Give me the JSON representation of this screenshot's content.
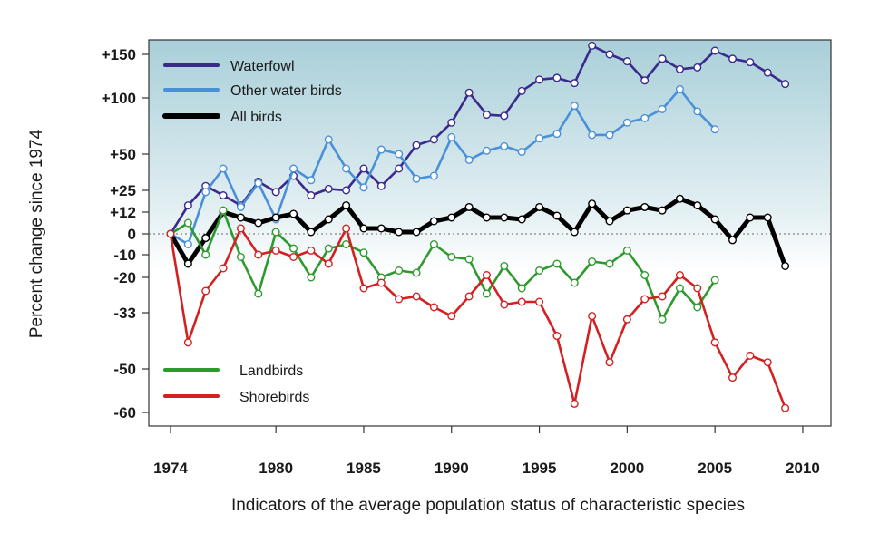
{
  "chart_data": {
    "type": "line",
    "title": "",
    "xlabel": "Indicators of the average population status of characteristic species",
    "ylabel": "Percent change since 1974",
    "xlim": [
      1974,
      2010
    ],
    "x_ticks": [
      1974,
      1980,
      1985,
      1990,
      1995,
      2000,
      2005,
      2010
    ],
    "y_ticks": [
      {
        "value": 150,
        "label": "+150"
      },
      {
        "value": 100,
        "label": "+100"
      },
      {
        "value": 50,
        "label": "+50"
      },
      {
        "value": 25,
        "label": "+25"
      },
      {
        "value": 12,
        "label": "+12"
      },
      {
        "value": 0,
        "label": "0"
      },
      {
        "value": -10,
        "label": "-10"
      },
      {
        "value": -20,
        "label": "-20"
      },
      {
        "value": -33,
        "label": "-33"
      },
      {
        "value": -50,
        "label": "-50"
      },
      {
        "value": -60,
        "label": "-60"
      }
    ],
    "zero_line": "dotted",
    "series": [
      {
        "name": "Waterfowl",
        "color": "#3a2a8c",
        "x": [
          1974,
          1975,
          1976,
          1977,
          1978,
          1979,
          1980,
          1981,
          1982,
          1983,
          1984,
          1985,
          1986,
          1987,
          1988,
          1989,
          1990,
          1991,
          1992,
          1993,
          1994,
          1995,
          1996,
          1997,
          1998,
          1999,
          2000,
          2001,
          2002,
          2003,
          2004,
          2005,
          2006,
          2007,
          2008,
          2009
        ],
        "y": [
          0,
          16,
          28,
          22,
          16,
          31,
          24,
          35,
          22,
          26,
          25,
          40,
          28,
          40,
          58,
          63,
          78,
          106,
          85,
          84,
          108,
          121,
          123,
          117,
          162,
          150,
          142,
          120,
          145,
          133,
          135,
          155,
          145,
          141,
          129,
          116
        ]
      },
      {
        "name": "Other water birds",
        "color": "#4a90d9",
        "x": [
          1974,
          1975,
          1976,
          1977,
          1978,
          1979,
          1980,
          1981,
          1982,
          1983,
          1984,
          1985,
          1986,
          1987,
          1988,
          1989,
          1990,
          1991,
          1992,
          1993,
          1994,
          1995,
          1996,
          1997,
          1998,
          1999,
          2000,
          2001,
          2002,
          2003,
          2004,
          2005
        ],
        "y": [
          0,
          -5,
          24,
          40,
          15,
          30,
          8,
          40,
          32,
          63,
          40,
          27,
          54,
          50,
          33,
          35,
          65,
          46,
          53,
          57,
          52,
          64,
          68,
          93,
          67,
          67,
          78,
          82,
          90,
          110,
          88,
          72
        ]
      },
      {
        "name": "All birds",
        "color": "#000000",
        "x": [
          1974,
          1975,
          1976,
          1977,
          1978,
          1979,
          1980,
          1981,
          1982,
          1983,
          1984,
          1985,
          1986,
          1987,
          1988,
          1989,
          1990,
          1991,
          1992,
          1993,
          1994,
          1995,
          1996,
          1997,
          1998,
          1999,
          2000,
          2001,
          2002,
          2003,
          2004,
          2005,
          2006,
          2007,
          2008,
          2009
        ],
        "y": [
          0,
          -14,
          -2,
          12,
          9,
          6,
          9,
          11,
          1,
          8,
          16,
          3,
          3,
          1,
          1,
          7,
          9,
          15,
          9,
          9,
          8,
          15,
          10,
          1,
          17,
          7,
          13,
          15,
          13,
          20,
          16,
          8,
          -3,
          9,
          9,
          -15
        ]
      },
      {
        "name": "Landbirds",
        "color": "#2e9a2e",
        "x": [
          1974,
          1975,
          1976,
          1977,
          1978,
          1979,
          1980,
          1981,
          1982,
          1983,
          1984,
          1985,
          1986,
          1987,
          1988,
          1989,
          1990,
          1991,
          1992,
          1993,
          1994,
          1995,
          1996,
          1997,
          1998,
          1999,
          2000,
          2001,
          2002,
          2003,
          2004,
          2005
        ],
        "y": [
          0,
          6,
          -10,
          13,
          -11,
          -26,
          1,
          -7,
          -20,
          -7,
          -5,
          -9,
          -20,
          -17,
          -18,
          -5,
          -11,
          -12,
          -26,
          -15,
          -24,
          -17,
          -14,
          -22,
          -13,
          -14,
          -8,
          -19,
          -35,
          -24,
          -31,
          -21
        ]
      },
      {
        "name": "Shorebirds",
        "color": "#d42020",
        "x": [
          1974,
          1975,
          1976,
          1977,
          1978,
          1979,
          1980,
          1981,
          1982,
          1983,
          1984,
          1985,
          1986,
          1987,
          1988,
          1989,
          1990,
          1991,
          1992,
          1993,
          1994,
          1995,
          1996,
          1997,
          1998,
          1999,
          2000,
          2001,
          2002,
          2003,
          2004,
          2005,
          2006,
          2007,
          2008,
          2009
        ],
        "y": [
          0,
          -42,
          -25,
          -16,
          3,
          -10,
          -8,
          -11,
          -8,
          -14,
          3,
          -24,
          -22,
          -28,
          -27,
          -31,
          -34,
          -27,
          -19,
          -30,
          -29,
          -29,
          -40,
          -58,
          -34,
          -48,
          -35,
          -28,
          -27,
          -19,
          -24,
          -42,
          -52,
          -46,
          -48,
          -59
        ]
      }
    ],
    "legend": [
      {
        "label": "Waterfowl",
        "color": "#3a2a8c"
      },
      {
        "label": "Other water birds",
        "color": "#4a90d9"
      },
      {
        "label": "All birds",
        "color": "#000000"
      },
      {
        "label": "Landbirds",
        "color": "#2e9a2e"
      },
      {
        "label": "Shorebirds",
        "color": "#d42020"
      }
    ]
  }
}
